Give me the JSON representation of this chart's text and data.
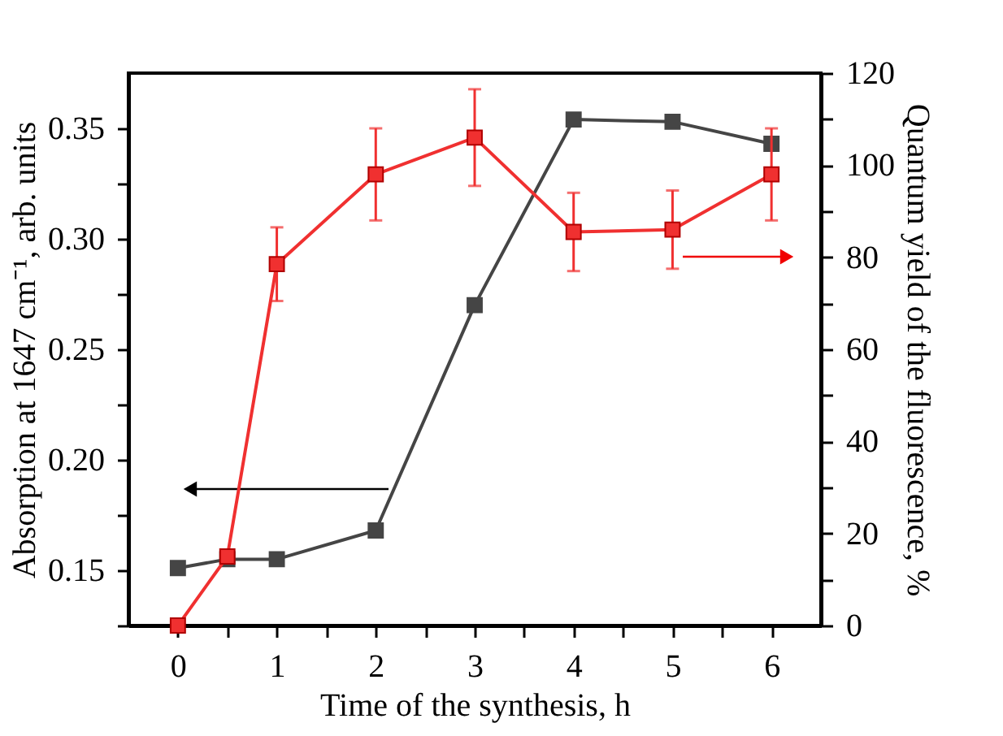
{
  "chart_data": {
    "type": "line",
    "xlabel": "Time of the synthesis, h",
    "ylabel": "Absorption at 1647 cm⁻¹, arb. units",
    "y2label": "Quantum yield of the fluorescence, %",
    "x": [
      0,
      0.5,
      1,
      2,
      3,
      4,
      5,
      6
    ],
    "series": [
      {
        "color": "#454545",
        "values": [
          0.151,
          0.155,
          0.155,
          0.168,
          0.27,
          0.354,
          0.353,
          0.343
        ]
      },
      {
        "color": "#f03030",
        "axis": "y2",
        "values": [
          0,
          15,
          78.5,
          98,
          106,
          85.5,
          86,
          98
        ],
        "errors": [
          null,
          null,
          8,
          10,
          10.5,
          8.5,
          8.5,
          10
        ]
      }
    ],
    "xlim": [
      -0.5,
      6.5
    ],
    "xticks": [
      0,
      {
        "value": 0.5,
        "label": null
      },
      1,
      {
        "value": 1.5,
        "label": null
      },
      2,
      {
        "value": 2.5,
        "label": null
      },
      3,
      {
        "value": 3.5,
        "label": null
      },
      4,
      {
        "value": 4.5,
        "label": null
      },
      5,
      {
        "value": 5.5,
        "label": null
      },
      6
    ],
    "ylim": [
      0.125,
      0.375
    ],
    "yticks": [
      {
        "value": 0.125,
        "label": null
      },
      0.15,
      {
        "value": 0.175,
        "label": null
      },
      {
        "value": 0.2,
        "label": "0.20"
      },
      {
        "value": 0.225,
        "label": null
      },
      0.25,
      {
        "value": 0.275,
        "label": null
      },
      {
        "value": 0.3,
        "label": "0.30"
      },
      {
        "value": 0.325,
        "label": null
      },
      0.35
    ],
    "y2lim": [
      0,
      120
    ],
    "y2ticks": [
      0,
      {
        "value": 10,
        "label": null
      },
      20,
      {
        "value": 30,
        "label": null
      },
      40,
      {
        "value": 50,
        "label": null
      },
      60,
      {
        "value": 70,
        "label": null
      },
      80,
      {
        "value": 90,
        "label": null
      },
      100,
      {
        "value": 110,
        "label": null
      },
      120
    ],
    "marker": "square",
    "grid": false
  }
}
